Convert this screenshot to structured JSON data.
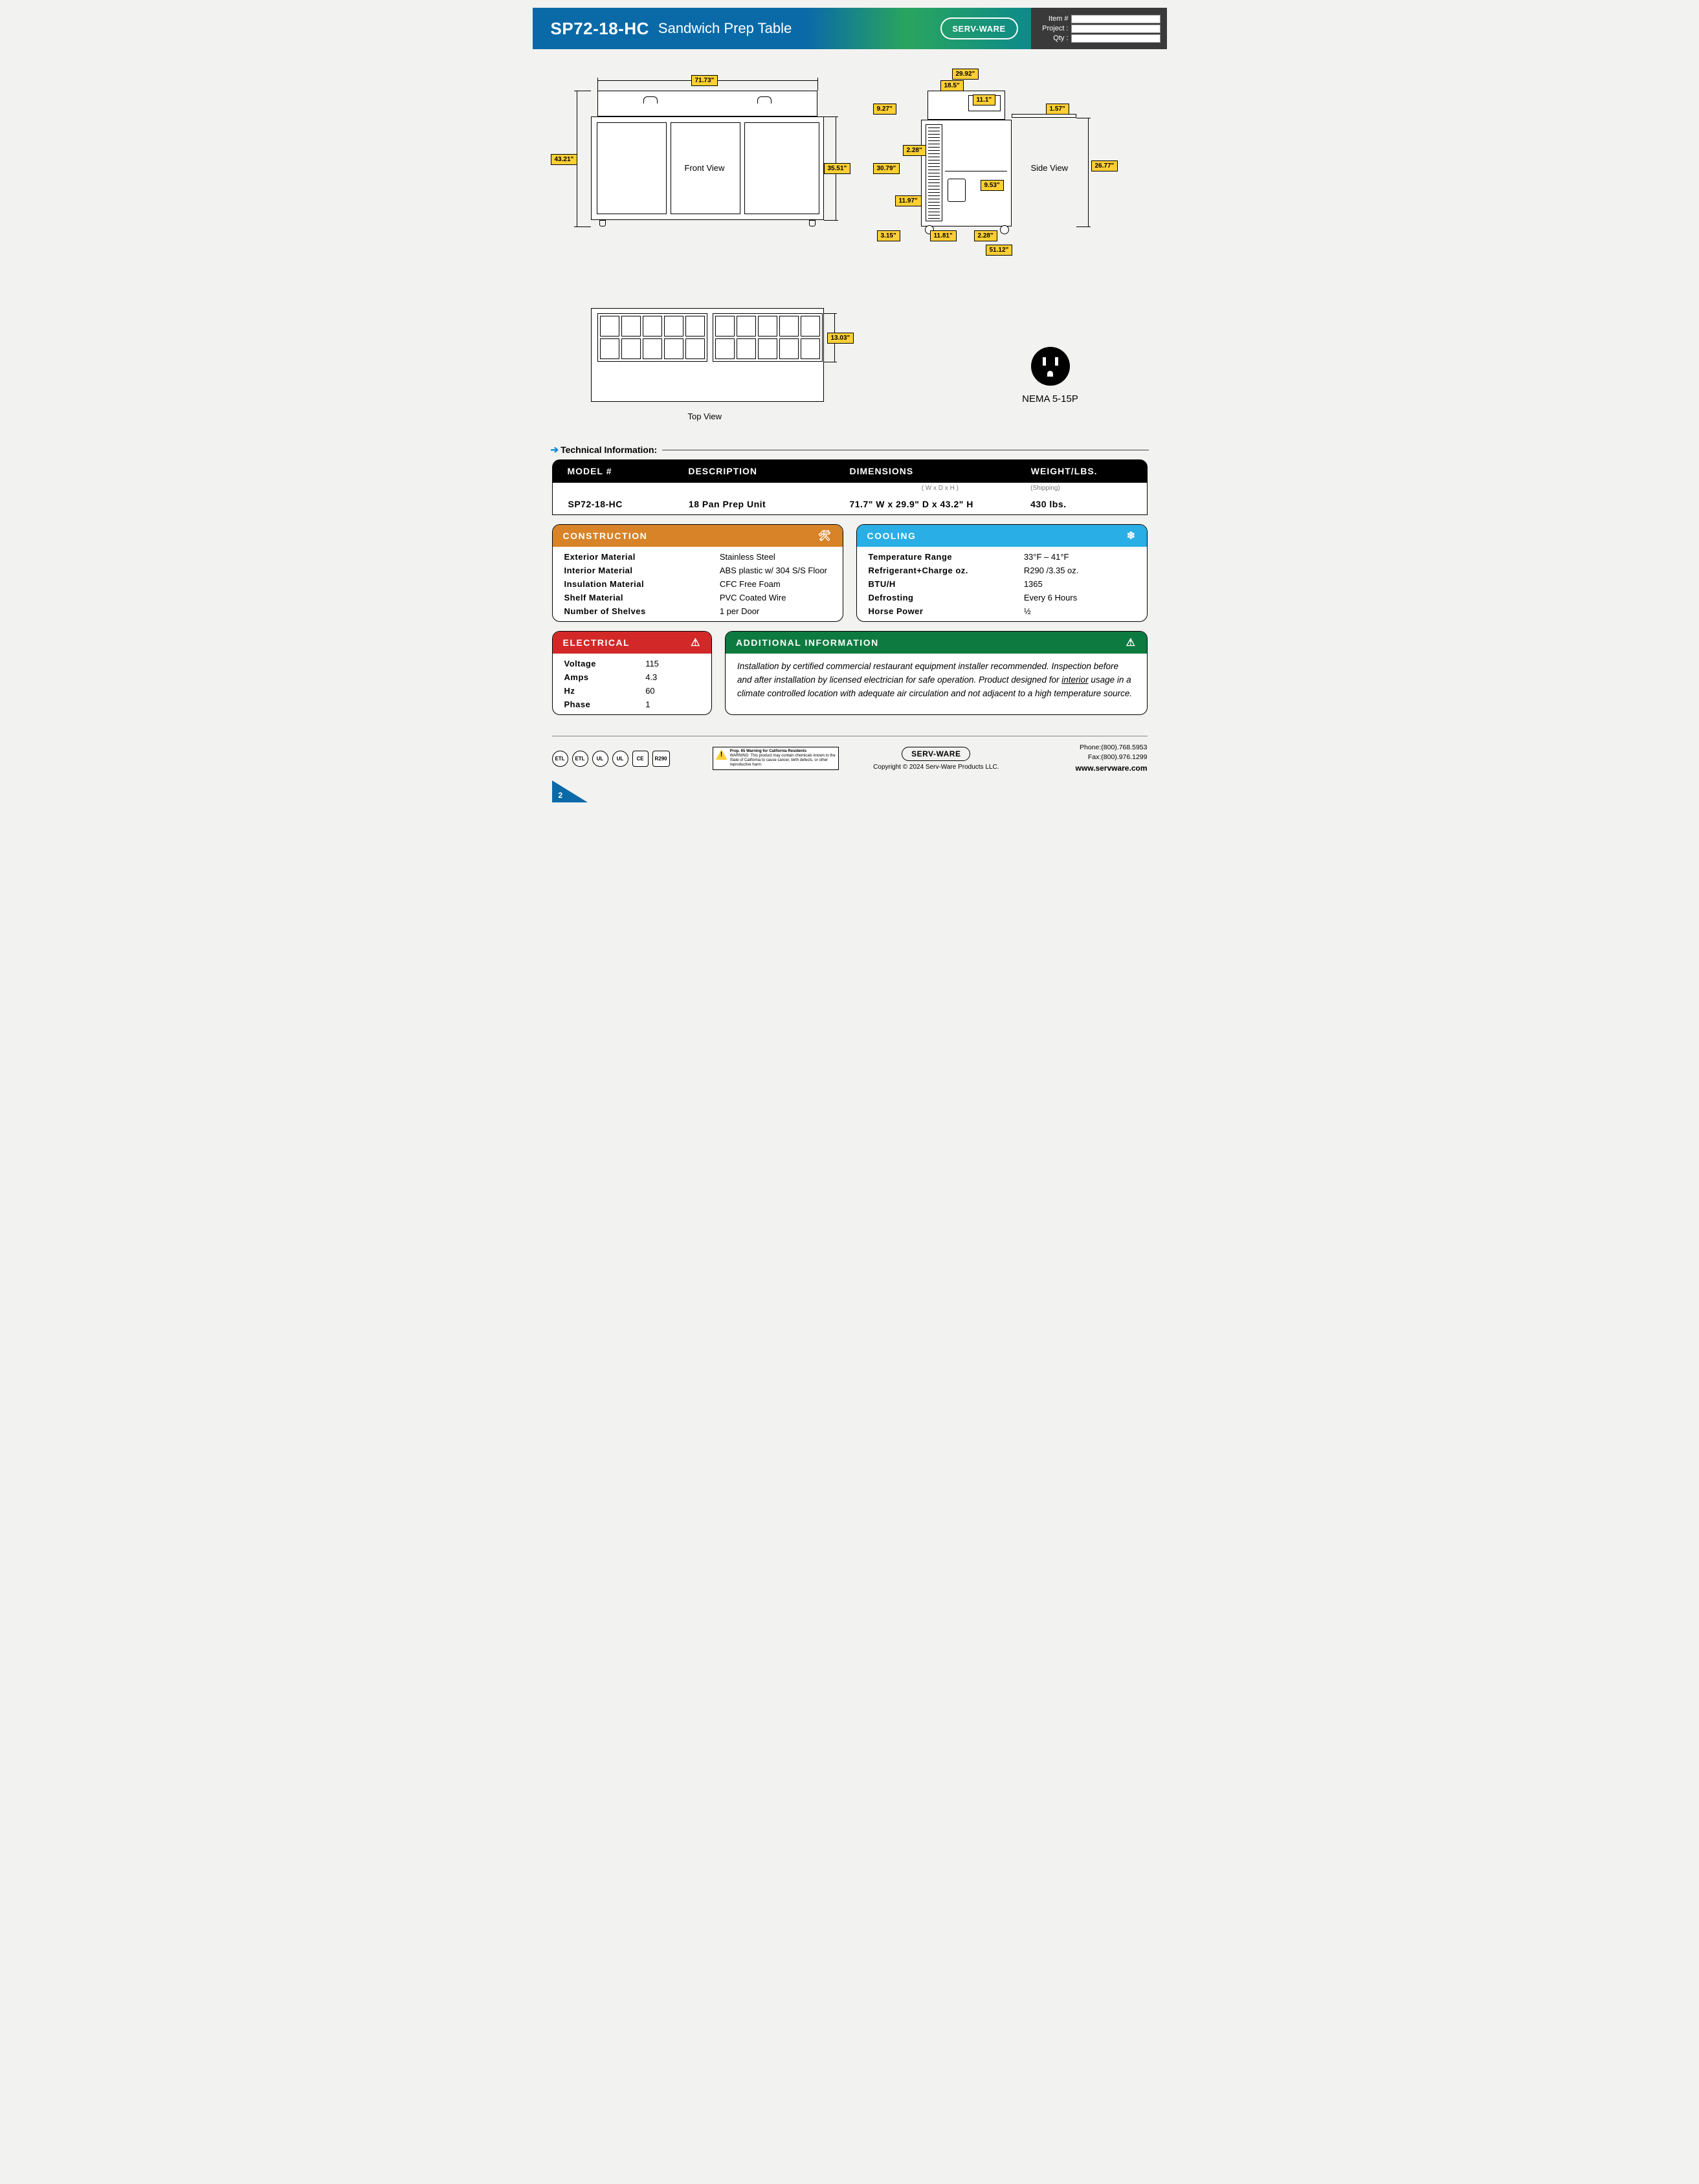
{
  "header": {
    "model": "SP72-18-HC",
    "product": "Sandwich Prep Table",
    "brand": "SERV-WARE",
    "fields": {
      "item": "Item #",
      "project": "Project :",
      "qty": "Qty :"
    },
    "gradient": [
      "#0a6aa8",
      "#2aa55f",
      "#0d8a8a"
    ]
  },
  "diagrams": {
    "front_label": "Front View",
    "side_label": "Side View",
    "top_label": "Top View",
    "dims": {
      "d_71_73": "71.73\"",
      "d_43_21": "43.21\"",
      "d_35_51": "35.51\"",
      "d_29_92": "29.92\"",
      "d_18_5": "18.5\"",
      "d_11_1": "11.1\"",
      "d_1_57": "1.57\"",
      "d_9_27": "9.27\"",
      "d_2_28a": "2.28\"",
      "d_30_79": "30.79\"",
      "d_26_77": "26.77\"",
      "d_9_53": "9.53\"",
      "d_11_97": "11.97\"",
      "d_3_15": "3.15\"",
      "d_11_81": "11.81\"",
      "d_2_28b": "2.28\"",
      "d_51_12": "51.12\"",
      "d_13_03": "13.03\""
    },
    "nema": "NEMA 5-15P"
  },
  "section_title": "Technical Information:",
  "spec": {
    "headers": [
      "MODEL #",
      "DESCRIPTION",
      "DIMENSIONS",
      "WEIGHT/LBS."
    ],
    "subheaders": [
      "",
      "",
      "( W x D x H )",
      "(Shipping)"
    ],
    "row": [
      "SP72-18-HC",
      "18 Pan Prep Unit",
      "71.7\" W x 29.9\" D x 43.2\" H",
      "430 lbs."
    ]
  },
  "construction": {
    "title": "CONSTRUCTION",
    "color": "#d88327",
    "rows": [
      [
        "Exterior Material",
        "Stainless Steel"
      ],
      [
        "Interior Material",
        "ABS plastic w/ 304 S/S Floor"
      ],
      [
        "Insulation Material",
        "CFC Free Foam"
      ],
      [
        "Shelf Material",
        "PVC Coated Wire"
      ],
      [
        "Number of Shelves",
        "1 per Door"
      ]
    ]
  },
  "cooling": {
    "title": "COOLING",
    "color": "#29aee6",
    "rows": [
      [
        "Temperature Range",
        "33°F – 41°F"
      ],
      [
        "Refrigerant+Charge oz.",
        "R290 /3.35 oz."
      ],
      [
        "BTU/H",
        "1365"
      ],
      [
        "Defrosting",
        "Every 6 Hours"
      ],
      [
        "Horse Power",
        "½"
      ]
    ]
  },
  "electrical": {
    "title": "ELECTRICAL",
    "color": "#d32828",
    "rows": [
      [
        "Voltage",
        "115"
      ],
      [
        "Amps",
        "4.3"
      ],
      [
        "Hz",
        "60"
      ],
      [
        "Phase",
        "1"
      ]
    ]
  },
  "additional": {
    "title": "ADDITIONAL INFORMATION",
    "color": "#0d7a3f",
    "text_parts": {
      "pre": "Installation by certified commercial restaurant equipment installer recommended. Inspection before and after installation by licensed electrician for safe operation. Product designed for ",
      "u": "interior",
      "post": " usage in a climate controlled location with adequate air circulation and not adjacent to a high temperature source."
    }
  },
  "footer": {
    "p65_title": "Prop. 65 Warning for California Residents",
    "p65_body": "WARNING: This product may contain chemicals known to the State of California to cause cancer, birth defects, or other reproductive harm.",
    "brand": "SERV-WARE",
    "copyright": "Copyright © 2024 Serv-Ware Products LLC.",
    "phone": "Phone:(800).768.5953",
    "fax": "Fax:(800).976.1299",
    "site": "www.servware.com",
    "page": "2",
    "certs": [
      "ETL",
      "ETL",
      "UL",
      "UL",
      "CE",
      "R290"
    ]
  }
}
